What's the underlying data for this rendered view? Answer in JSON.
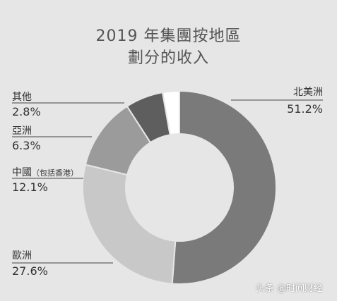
{
  "chart_data": {
    "type": "pie",
    "title": "2019 年集團按地區",
    "subtitle": "劃分的收入",
    "series": [
      {
        "name": "北美洲",
        "value": 51.2,
        "value_label": "51.2%",
        "color": "#7a7a7a"
      },
      {
        "name": "歐洲",
        "value": 27.6,
        "value_label": "27.6%",
        "color": "#c8c8c8"
      },
      {
        "name": "中國",
        "name_suffix": "（包括香港）",
        "value": 12.1,
        "value_label": "12.1%",
        "color": "#9b9b9b"
      },
      {
        "name": "亞洲",
        "value": 6.3,
        "value_label": "6.3%",
        "color": "#5e5e5e"
      },
      {
        "name": "其他",
        "value": 2.8,
        "value_label": "2.8%",
        "color": "#ffffff"
      }
    ]
  },
  "watermark": "头条 @时间财经"
}
